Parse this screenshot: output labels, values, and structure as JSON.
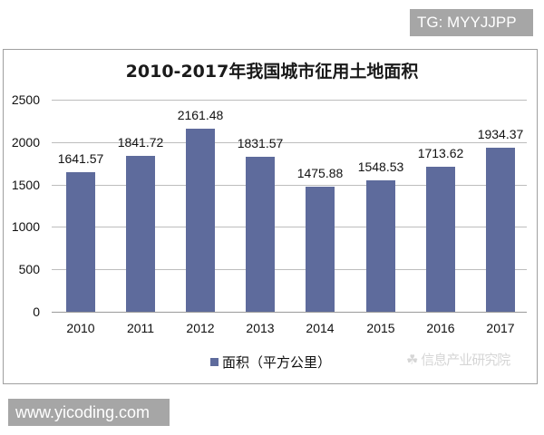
{
  "tags": {
    "top": "TG: MYYJJPP",
    "bottom": "www.yicoding.com"
  },
  "colors": {
    "bar": "#5e6b9c",
    "grid": "#bdbdbd",
    "tag_bg": "#a6a6a6"
  },
  "watermark": "☘ 信息产业研究院",
  "chart_data": {
    "type": "bar",
    "title": "2010-2017年我国城市征用土地面积",
    "categories": [
      "2010",
      "2011",
      "2012",
      "2013",
      "2014",
      "2015",
      "2016",
      "2017"
    ],
    "series": [
      {
        "name": "面积（平方公里）",
        "values": [
          1641.57,
          1841.72,
          2161.48,
          1831.57,
          1475.88,
          1548.53,
          1713.62,
          1934.37
        ],
        "labels": [
          "1641.57",
          "1841.72",
          "2161.48",
          "1831.57",
          "1475.88",
          "1548.53",
          "1713.62",
          "1934.37"
        ]
      }
    ],
    "xlabel": "",
    "ylabel": "",
    "ylim": [
      0,
      2500
    ],
    "yticks": [
      "0",
      "500",
      "1000",
      "1500",
      "2000",
      "2500"
    ],
    "grid": true,
    "legend_position": "bottom",
    "legend": [
      "面积（平方公里）"
    ]
  }
}
